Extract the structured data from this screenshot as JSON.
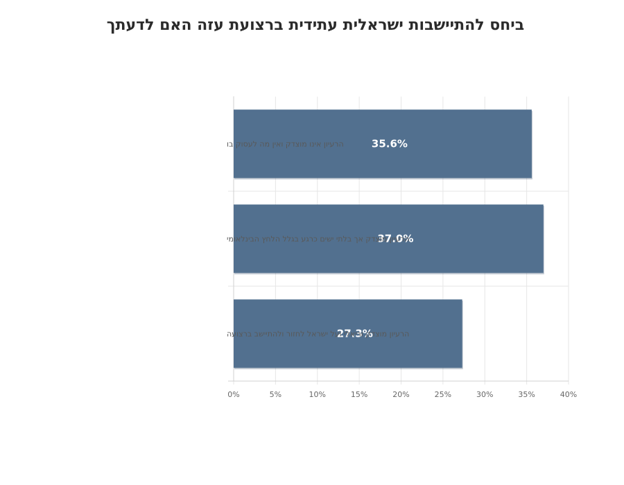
{
  "chart_data": {
    "type": "bar",
    "orientation": "horizontal",
    "title": "ביחס להתיישבות ישראלית עתידית ברצועת עזה האם לדעתך",
    "categories": [
      "הרעיון אינו מוצדק ואין מה לעסוק בו",
      "הרעיון מוצדק אך בלתי ישים כרגע בגלל הלחץ הבינלאומי",
      "הרעיון מוצדק וריאלי ועל ישראל לחזור ולהתיישב ברצועה"
    ],
    "values": [
      35.6,
      37.0,
      27.3
    ],
    "value_labels": [
      "35.6%",
      "37.0%",
      "27.3%"
    ],
    "xlim": [
      0,
      40
    ],
    "x_ticks": [
      "0%",
      "5%",
      "10%",
      "15%",
      "20%",
      "25%",
      "30%",
      "35%",
      "40%"
    ],
    "xlabel": "",
    "ylabel": "",
    "grid": true,
    "legend": "none",
    "bar_color": "#52708f"
  }
}
